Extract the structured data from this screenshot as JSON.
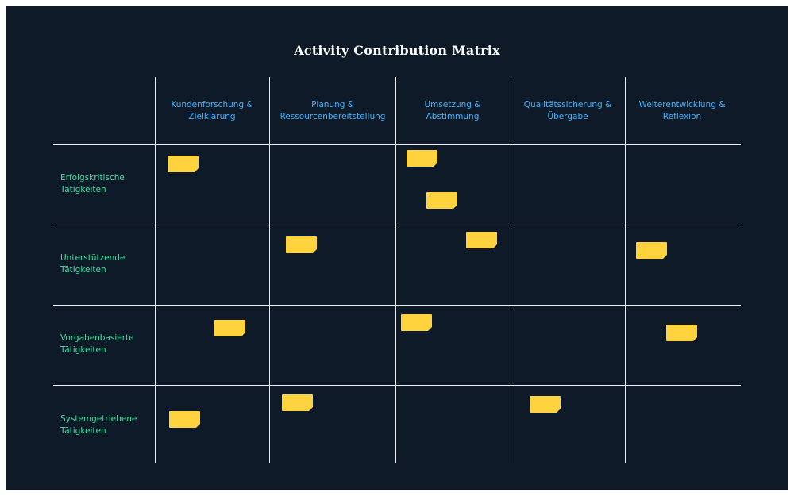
{
  "title": "Activity Contribution Matrix",
  "columns": [
    "Kundenforschung & Zielklärung",
    "Planung & Ressourcenbereitstellung",
    "Umsetzung & Abstimmung",
    "Qualitätssicherung & Übergabe",
    "Weiterentwicklung & Reflexion"
  ],
  "rows": [
    "Erfolgskritische Tätigkeiten",
    "Unterstützende Tätigkeiten",
    "Vorgabenbasierte Tätigkeiten",
    "Systemgetriebene Tätigkeiten"
  ],
  "colors": {
    "background": "#0f1a29",
    "column_header": "#3fb6ff",
    "row_header": "#3be3a3",
    "sticky_note": "#ffd33d",
    "grid_line": "#e8ecf1"
  }
}
